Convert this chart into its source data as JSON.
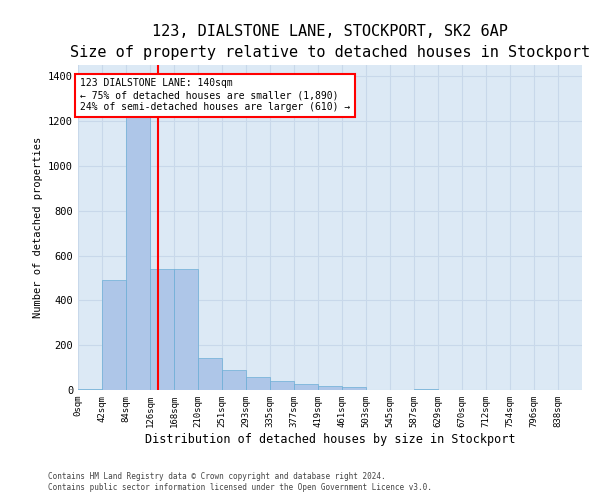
{
  "title1": "123, DIALSTONE LANE, STOCKPORT, SK2 6AP",
  "title2": "Size of property relative to detached houses in Stockport",
  "xlabel": "Distribution of detached houses by size in Stockport",
  "ylabel": "Number of detached properties",
  "bin_labels": [
    "0sqm",
    "42sqm",
    "84sqm",
    "126sqm",
    "168sqm",
    "210sqm",
    "251sqm",
    "293sqm",
    "335sqm",
    "377sqm",
    "419sqm",
    "461sqm",
    "503sqm",
    "545sqm",
    "587sqm",
    "629sqm",
    "670sqm",
    "712sqm",
    "754sqm",
    "796sqm",
    "838sqm"
  ],
  "bin_edges": [
    0,
    42,
    84,
    126,
    168,
    210,
    251,
    293,
    335,
    377,
    419,
    461,
    503,
    545,
    587,
    629,
    670,
    712,
    754,
    796,
    838,
    880
  ],
  "bar_heights": [
    5,
    490,
    1240,
    540,
    540,
    145,
    90,
    60,
    40,
    25,
    18,
    12,
    0,
    0,
    5,
    0,
    0,
    0,
    0,
    0,
    0
  ],
  "bar_color": "#aec6e8",
  "bar_edge_color": "#6baed6",
  "grid_color": "#c8d8ea",
  "bg_color": "#dce9f5",
  "vline_x": 140,
  "vline_color": "red",
  "annotation_text": "123 DIALSTONE LANE: 140sqm\n← 75% of detached houses are smaller (1,890)\n24% of semi-detached houses are larger (610) →",
  "annotation_box_color": "white",
  "annotation_border_color": "red",
  "ylim": [
    0,
    1450
  ],
  "yticks": [
    0,
    200,
    400,
    600,
    800,
    1000,
    1200,
    1400
  ],
  "footer1": "Contains HM Land Registry data © Crown copyright and database right 2024.",
  "footer2": "Contains public sector information licensed under the Open Government Licence v3.0.",
  "title_fontsize": 11,
  "subtitle_fontsize": 9.5
}
